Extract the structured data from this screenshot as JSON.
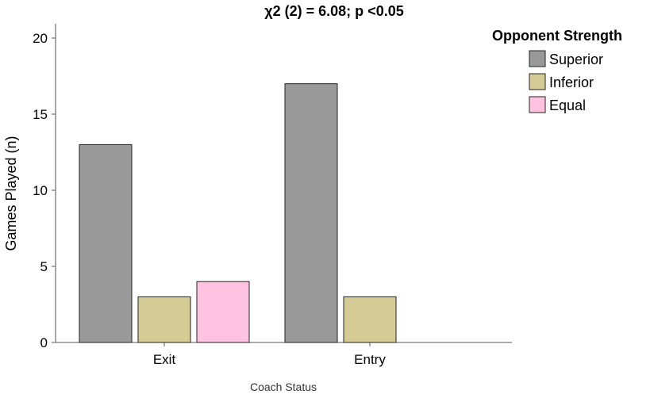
{
  "chart_data": {
    "type": "bar",
    "title": "χ2 (2) = 6.08; p <0.05",
    "xlabel": "Coach Status",
    "ylabel": "Games Played (n)",
    "categories": [
      "Exit",
      "Entry"
    ],
    "ylim": [
      0,
      20
    ],
    "yticks": [
      0,
      5,
      10,
      15,
      20
    ],
    "grid": false,
    "legend": {
      "title": "Opponent Strength",
      "placement": "top-right"
    },
    "series": [
      {
        "name": "Superior",
        "color": "#999999",
        "values": [
          13,
          17
        ]
      },
      {
        "name": "Inferior",
        "color": "#d4cc94",
        "values": [
          3,
          3
        ]
      },
      {
        "name": "Equal",
        "color": "#ffc2e0",
        "values": [
          4,
          null
        ]
      }
    ]
  }
}
